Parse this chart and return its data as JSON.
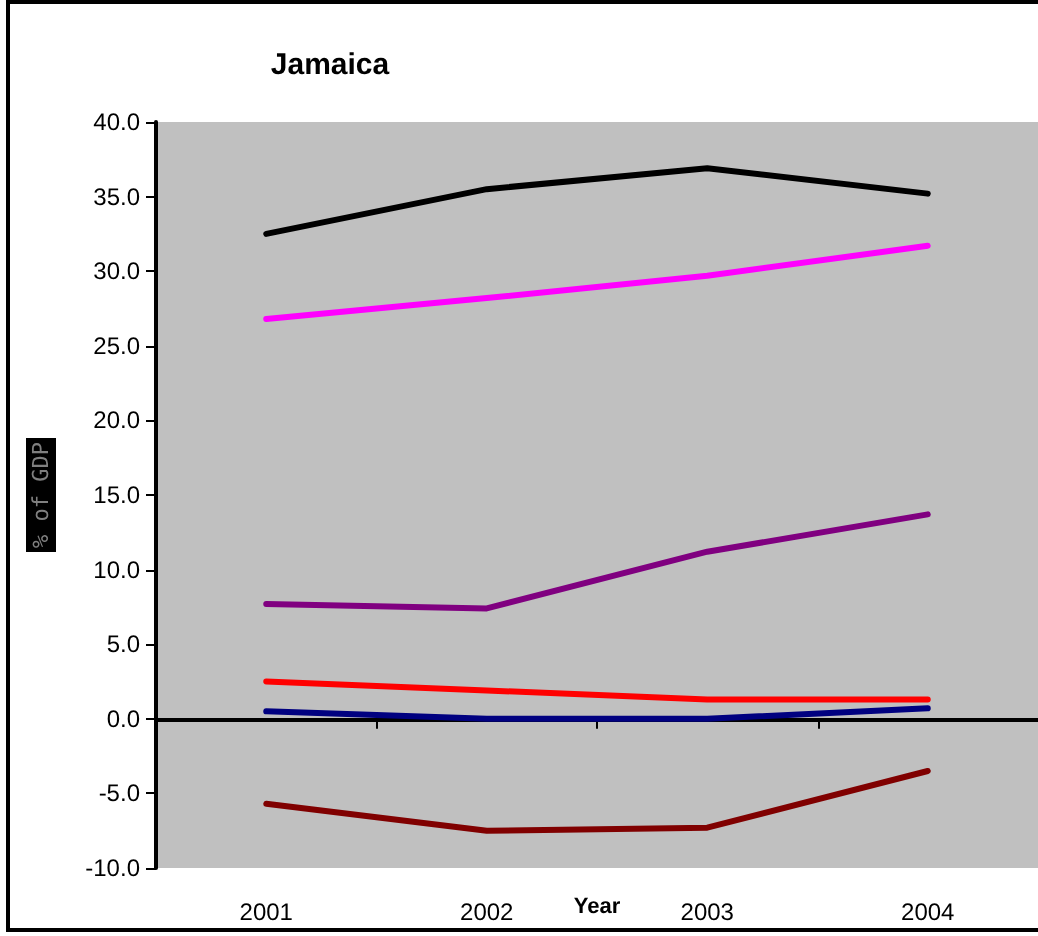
{
  "chart_data": {
    "type": "line",
    "title": "Jamaica",
    "xlabel": "Year",
    "ylabel": "% of GDP",
    "categories": [
      "2001",
      "2002",
      "2003",
      "2004"
    ],
    "series": [
      {
        "color": "#000000",
        "values": [
          32.5,
          35.5,
          36.9,
          35.2
        ]
      },
      {
        "color": "#ff00ff",
        "values": [
          26.8,
          28.2,
          29.7,
          31.7
        ]
      },
      {
        "color": "#800080",
        "values": [
          7.7,
          7.4,
          11.2,
          13.7
        ]
      },
      {
        "color": "#ff0000",
        "values": [
          2.5,
          1.9,
          1.3,
          1.3
        ]
      },
      {
        "color": "#000080",
        "values": [
          0.5,
          0,
          0,
          0.7
        ]
      },
      {
        "color": "#800000",
        "values": [
          -5.7,
          -7.5,
          -7.3,
          -3.5
        ]
      }
    ],
    "ylim": [
      -10,
      40
    ],
    "yticks": [
      {
        "value": -10,
        "label": "-10.0"
      },
      {
        "value": -5,
        "label": "-5.0"
      },
      {
        "value": 0,
        "label": "0.0"
      },
      {
        "value": 5,
        "label": "5.0"
      },
      {
        "value": 10,
        "label": "10.0"
      },
      {
        "value": 15,
        "label": "15.0"
      },
      {
        "value": 20,
        "label": "20.0"
      },
      {
        "value": 25,
        "label": "25.0"
      },
      {
        "value": 30,
        "label": "30.0"
      },
      {
        "value": 35,
        "label": "35.0"
      },
      {
        "value": 40,
        "label": "40.0"
      }
    ],
    "marker": "none",
    "line_style": "solid"
  }
}
